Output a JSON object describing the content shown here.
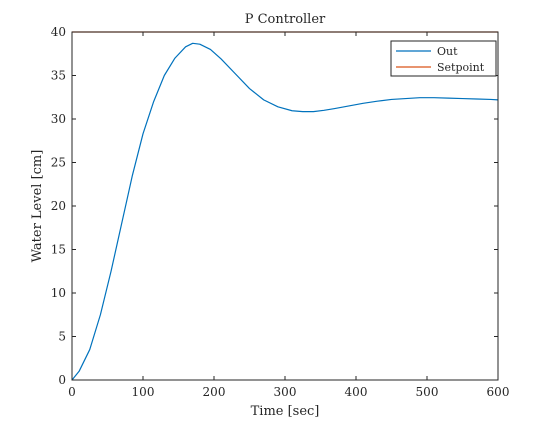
{
  "chart_data": {
    "type": "line",
    "title": "P Controller",
    "xlabel": "Time [sec]",
    "ylabel": "Water Level [cm]",
    "xlim": [
      0,
      600
    ],
    "ylim": [
      0,
      40
    ],
    "xticks": [
      0,
      100,
      200,
      300,
      400,
      500,
      600
    ],
    "yticks": [
      0,
      5,
      10,
      15,
      20,
      25,
      30,
      35,
      40
    ],
    "grid": false,
    "legend_position": "top-right",
    "series": [
      {
        "name": "Out",
        "color": "#0072BD",
        "x": [
          0,
          10,
          25,
          40,
          55,
          70,
          85,
          100,
          115,
          130,
          145,
          160,
          170,
          180,
          195,
          210,
          230,
          250,
          270,
          290,
          310,
          325,
          340,
          355,
          370,
          390,
          410,
          430,
          450,
          470,
          490,
          510,
          530,
          550,
          570,
          590,
          600
        ],
        "y": [
          0,
          1.0,
          3.5,
          7.5,
          12.5,
          18.0,
          23.5,
          28.3,
          32.0,
          35.0,
          37.0,
          38.3,
          38.7,
          38.6,
          38.0,
          36.9,
          35.2,
          33.5,
          32.2,
          31.4,
          30.95,
          30.85,
          30.85,
          31.0,
          31.2,
          31.5,
          31.8,
          32.05,
          32.25,
          32.35,
          32.45,
          32.45,
          32.4,
          32.35,
          32.3,
          32.25,
          32.2
        ]
      },
      {
        "name": "Setpoint",
        "color": "#D95319",
        "x": [
          0,
          600
        ],
        "y": [
          40,
          40
        ]
      }
    ]
  }
}
